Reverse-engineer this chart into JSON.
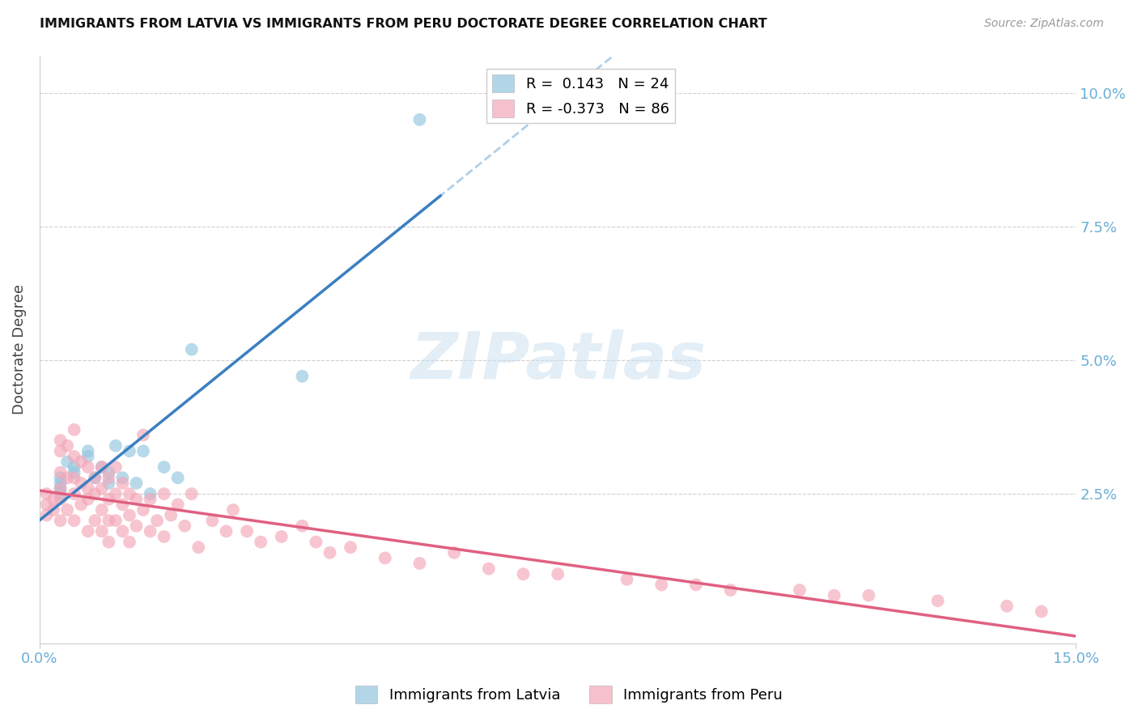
{
  "title": "IMMIGRANTS FROM LATVIA VS IMMIGRANTS FROM PERU DOCTORATE DEGREE CORRELATION CHART",
  "source": "Source: ZipAtlas.com",
  "ylabel": "Doctorate Degree",
  "xlim": [
    0.0,
    0.15
  ],
  "ylim": [
    -0.003,
    0.107
  ],
  "legend_blue_r": "0.143",
  "legend_blue_n": "24",
  "legend_pink_r": "-0.373",
  "legend_pink_n": "86",
  "blue_color": "#92c5de",
  "pink_color": "#f4a6b8",
  "blue_line_color": "#3a7fc1",
  "pink_line_color": "#e06080",
  "dashed_line_color": "#b0cfe8",
  "watermark_text": "ZIPatlas",
  "blue_scatter_x": [
    0.003,
    0.003,
    0.003,
    0.003,
    0.004,
    0.005,
    0.005,
    0.007,
    0.007,
    0.008,
    0.009,
    0.01,
    0.01,
    0.011,
    0.012,
    0.013,
    0.014,
    0.015,
    0.016,
    0.018,
    0.02,
    0.022,
    0.038,
    0.055
  ],
  "blue_scatter_y": [
    0.028,
    0.027,
    0.026,
    0.025,
    0.031,
    0.03,
    0.029,
    0.033,
    0.032,
    0.028,
    0.03,
    0.029,
    0.027,
    0.034,
    0.028,
    0.033,
    0.027,
    0.033,
    0.025,
    0.03,
    0.028,
    0.052,
    0.047,
    0.095
  ],
  "pink_scatter_x": [
    0.001,
    0.001,
    0.001,
    0.002,
    0.002,
    0.003,
    0.003,
    0.003,
    0.003,
    0.003,
    0.003,
    0.004,
    0.004,
    0.004,
    0.005,
    0.005,
    0.005,
    0.005,
    0.005,
    0.006,
    0.006,
    0.006,
    0.007,
    0.007,
    0.007,
    0.007,
    0.008,
    0.008,
    0.008,
    0.009,
    0.009,
    0.009,
    0.009,
    0.01,
    0.01,
    0.01,
    0.01,
    0.011,
    0.011,
    0.011,
    0.012,
    0.012,
    0.012,
    0.013,
    0.013,
    0.013,
    0.014,
    0.014,
    0.015,
    0.015,
    0.016,
    0.016,
    0.017,
    0.018,
    0.018,
    0.019,
    0.02,
    0.021,
    0.022,
    0.023,
    0.025,
    0.027,
    0.028,
    0.03,
    0.032,
    0.035,
    0.038,
    0.04,
    0.042,
    0.045,
    0.05,
    0.055,
    0.06,
    0.065,
    0.07,
    0.075,
    0.085,
    0.09,
    0.095,
    0.1,
    0.11,
    0.115,
    0.12,
    0.13,
    0.14,
    0.145
  ],
  "pink_scatter_y": [
    0.025,
    0.023,
    0.021,
    0.024,
    0.022,
    0.035,
    0.033,
    0.029,
    0.026,
    0.024,
    0.02,
    0.034,
    0.028,
    0.022,
    0.037,
    0.032,
    0.028,
    0.025,
    0.02,
    0.031,
    0.027,
    0.023,
    0.03,
    0.026,
    0.024,
    0.018,
    0.028,
    0.025,
    0.02,
    0.03,
    0.026,
    0.022,
    0.018,
    0.028,
    0.024,
    0.02,
    0.016,
    0.03,
    0.025,
    0.02,
    0.027,
    0.023,
    0.018,
    0.025,
    0.021,
    0.016,
    0.024,
    0.019,
    0.036,
    0.022,
    0.024,
    0.018,
    0.02,
    0.025,
    0.017,
    0.021,
    0.023,
    0.019,
    0.025,
    0.015,
    0.02,
    0.018,
    0.022,
    0.018,
    0.016,
    0.017,
    0.019,
    0.016,
    0.014,
    0.015,
    0.013,
    0.012,
    0.014,
    0.011,
    0.01,
    0.01,
    0.009,
    0.008,
    0.008,
    0.007,
    0.007,
    0.006,
    0.006,
    0.005,
    0.004,
    0.003
  ]
}
